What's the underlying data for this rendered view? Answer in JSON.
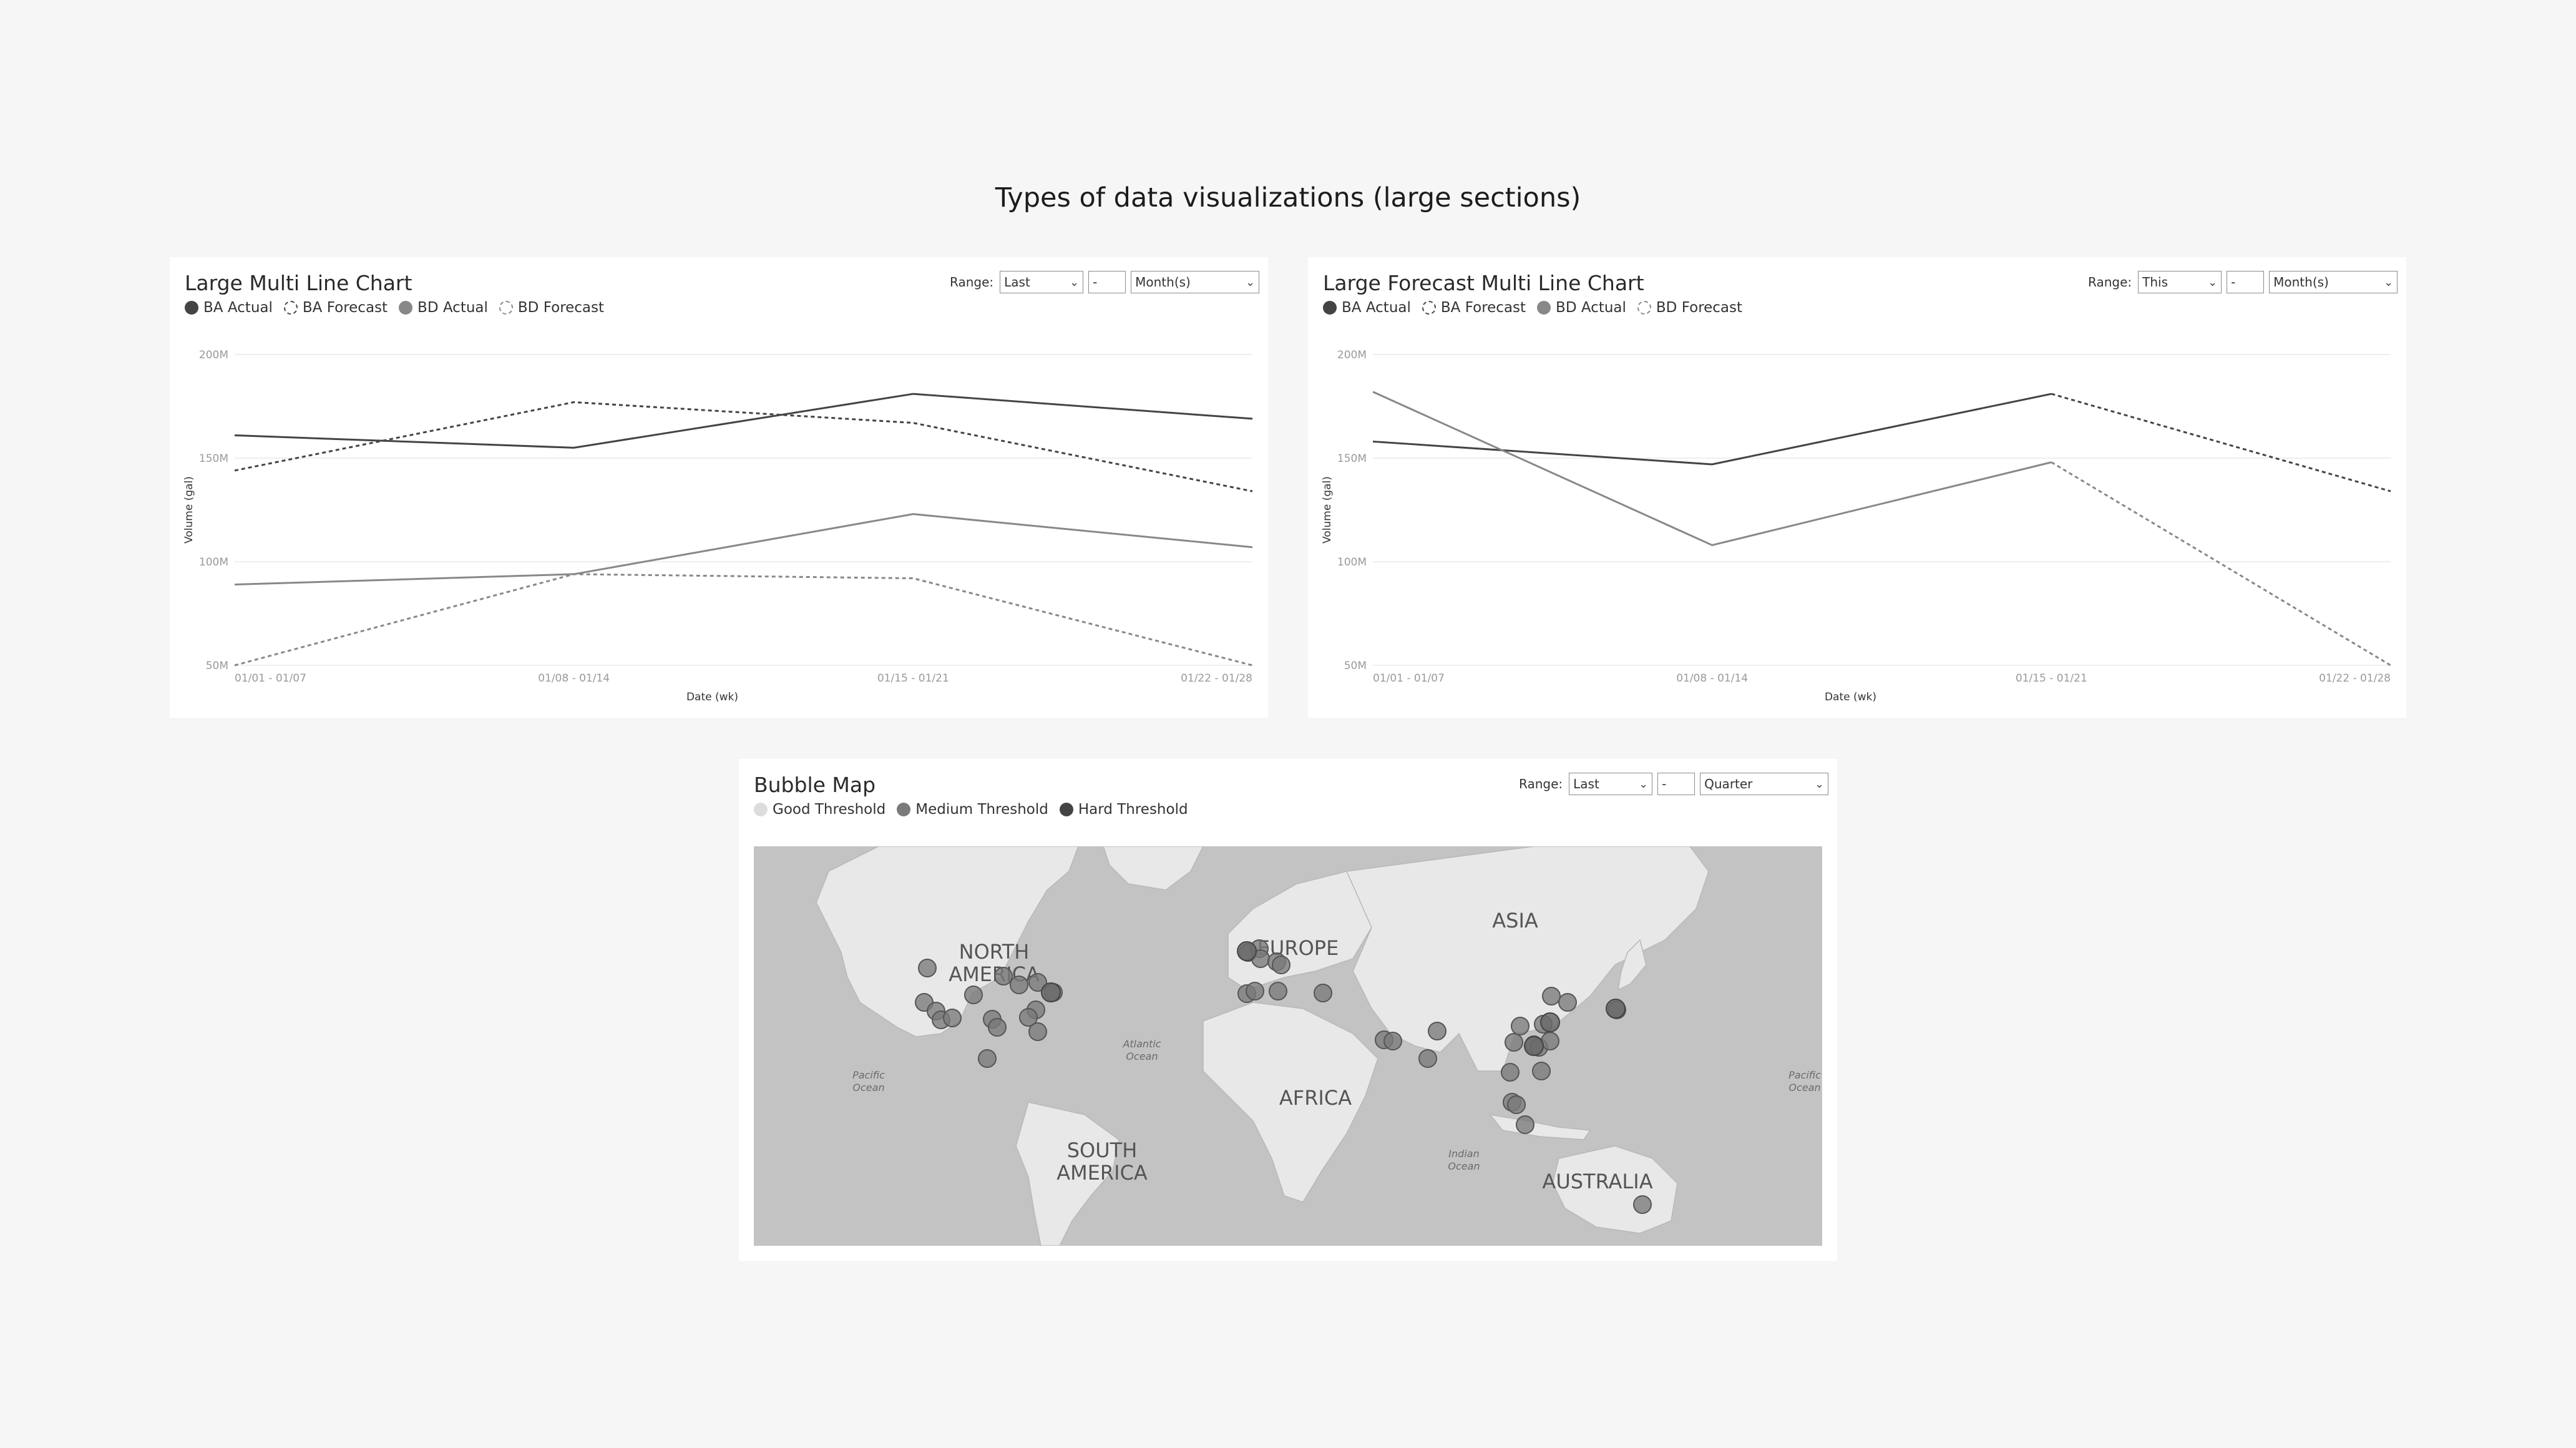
{
  "page": {
    "title": "Types of data visualizations (large sections)"
  },
  "colors": {
    "background": "#f6f6f6",
    "card": "#ffffff",
    "ba": "#444444",
    "bd": "#888888",
    "map_water": "#c3c3c3",
    "map_land": "#e8e8e8",
    "bubble_good": "#dcdcdc",
    "bubble_medium": "#7a7a7a",
    "bubble_hard": "#444444"
  },
  "line_chart": {
    "title": "Large Multi Line Chart",
    "legend": [
      {
        "label": "BA Actual",
        "style": "solid",
        "color": "#444444"
      },
      {
        "label": "BA Forecast",
        "style": "dashed",
        "color": "#444444"
      },
      {
        "label": "BD Actual",
        "style": "solid",
        "color": "#888888"
      },
      {
        "label": "BD Forecast",
        "style": "dashed",
        "color": "#888888"
      }
    ],
    "range": {
      "label": "Range:",
      "period": "Last",
      "count": "-",
      "unit": "Month(s)"
    }
  },
  "forecast_chart": {
    "title": "Large Forecast Multi Line Chart",
    "legend": [
      {
        "label": "BA Actual",
        "style": "solid",
        "color": "#444444"
      },
      {
        "label": "BA Forecast",
        "style": "dashed",
        "color": "#444444"
      },
      {
        "label": "BD Actual",
        "style": "solid",
        "color": "#888888"
      },
      {
        "label": "BD Forecast",
        "style": "dashed",
        "color": "#888888"
      }
    ],
    "range": {
      "label": "Range:",
      "period": "This",
      "count": "-",
      "unit": "Month(s)"
    }
  },
  "bubble_map": {
    "title": "Bubble Map",
    "legend": [
      {
        "label": "Good Threshold",
        "color": "#dcdcdc"
      },
      {
        "label": "Medium Threshold",
        "color": "#7a7a7a"
      },
      {
        "label": "Hard Threshold",
        "color": "#444444"
      }
    ],
    "range": {
      "label": "Range:",
      "period": "Last",
      "count": "-",
      "unit": "Quarter"
    },
    "map_labels": {
      "north_america": [
        "NORTH",
        "AMERICA"
      ],
      "south_america": [
        "SOUTH",
        "AMERICA"
      ],
      "europe": "EUROPE",
      "asia": "ASIA",
      "africa": "AFRICA",
      "australia": "AUSTRALIA",
      "atlantic": [
        "Atlantic",
        "Ocean"
      ],
      "pacific_left": [
        "Pacific",
        "Ocean"
      ],
      "pacific_right": [
        "Pacific",
        "Ocean"
      ],
      "indian": [
        "Indian",
        "Ocean"
      ]
    }
  },
  "chart_data": [
    {
      "type": "line",
      "title": "Large Multi Line Chart",
      "xlabel": "Date (wk)",
      "ylabel": "Volume (gal)",
      "categories": [
        "01/01 - 01/07",
        "01/08 - 01/14",
        "01/15 - 01/21",
        "01/22 - 01/28"
      ],
      "yticks": [
        "200M",
        "150M",
        "100M",
        "50M"
      ],
      "ylim": [
        50,
        200
      ],
      "grid": true,
      "legend_position": "top-left",
      "series": [
        {
          "name": "BA Actual",
          "style": "solid",
          "color": "#444444",
          "values": [
            161,
            155,
            181,
            169
          ]
        },
        {
          "name": "BA Forecast",
          "style": "dashed",
          "color": "#444444",
          "values": [
            144,
            177,
            167,
            134
          ]
        },
        {
          "name": "BD Actual",
          "style": "solid",
          "color": "#888888",
          "values": [
            89,
            94,
            123,
            107
          ]
        },
        {
          "name": "BD Forecast",
          "style": "dashed",
          "color": "#888888",
          "values": [
            50,
            94,
            92,
            50
          ]
        }
      ]
    },
    {
      "type": "line",
      "title": "Large Forecast Multi Line Chart",
      "xlabel": "Date (wk)",
      "ylabel": "Volume (gal)",
      "categories": [
        "01/01 - 01/07",
        "01/08 - 01/14",
        "01/15 - 01/21",
        "01/22 - 01/28"
      ],
      "yticks": [
        "200M",
        "150M",
        "100M",
        "50M"
      ],
      "ylim": [
        50,
        200
      ],
      "grid": true,
      "legend_position": "top-left",
      "series": [
        {
          "name": "BA Actual",
          "style": "solid",
          "color": "#444444",
          "values": [
            158,
            147,
            181,
            null
          ]
        },
        {
          "name": "BA Forecast",
          "style": "dashed",
          "color": "#444444",
          "values": [
            null,
            null,
            181,
            134
          ]
        },
        {
          "name": "BD Actual",
          "style": "solid",
          "color": "#888888",
          "values": [
            182,
            108,
            148,
            null
          ]
        },
        {
          "name": "BD Forecast",
          "style": "dashed",
          "color": "#888888",
          "values": [
            null,
            null,
            148,
            50
          ]
        }
      ]
    }
  ]
}
